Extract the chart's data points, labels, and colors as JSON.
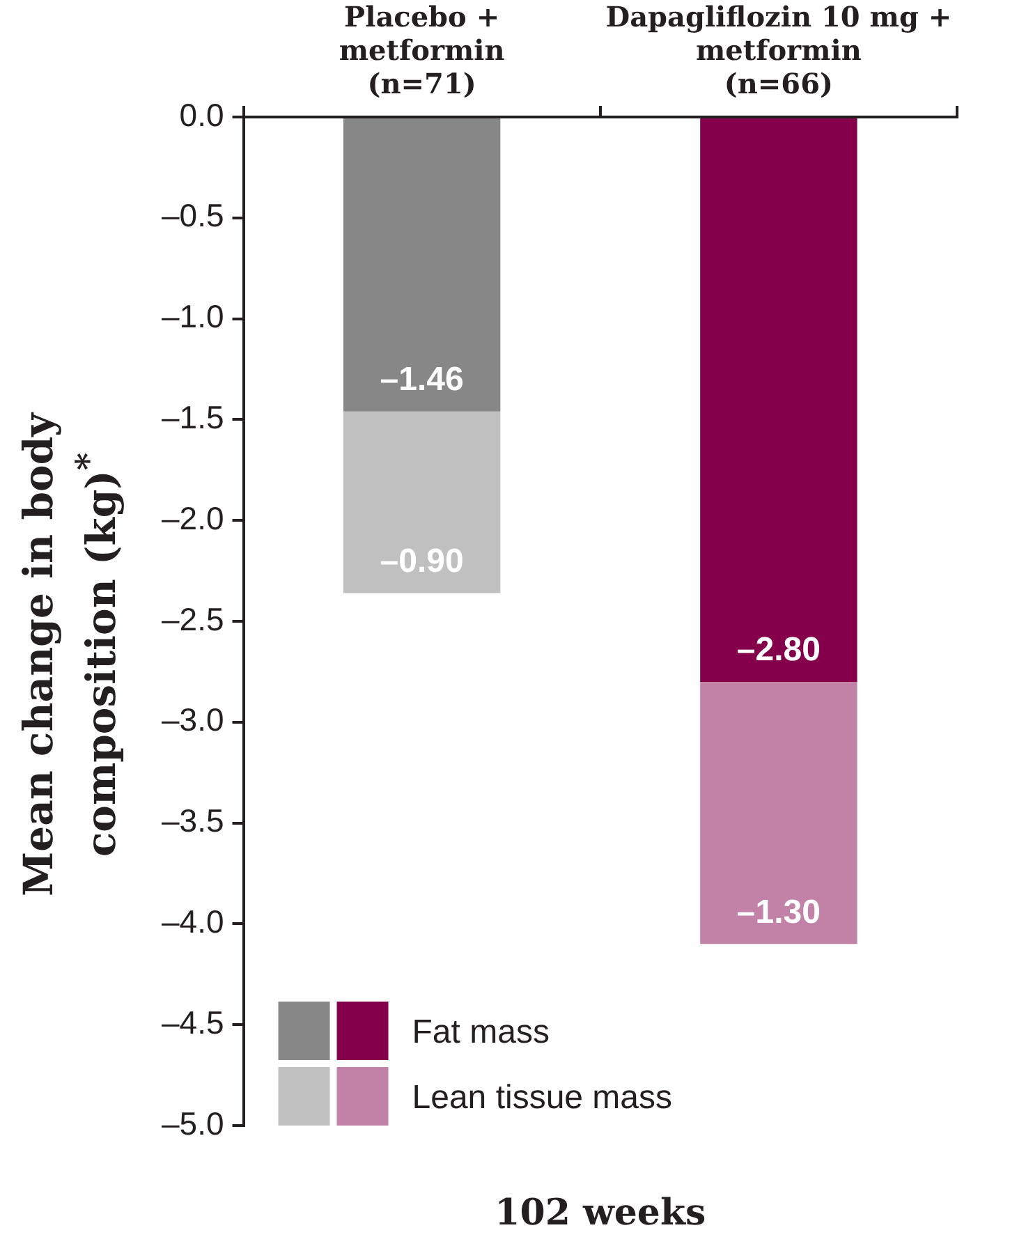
{
  "chart_data": {
    "type": "bar",
    "stacked": true,
    "categories": [
      "Placebo +\nmetformin\n(n=71)",
      "Dapagliflozin 10 mg +\nmetformin\n(n=66)"
    ],
    "series": [
      {
        "name": "Fat mass",
        "colors": [
          "#878787",
          "#85004b"
        ],
        "values": [
          -1.46,
          -2.8
        ],
        "value_labels": [
          "–1.46",
          "–2.80"
        ]
      },
      {
        "name": "Lean tissue mass",
        "colors": [
          "#c0c0c0",
          "#c282a8"
        ],
        "values": [
          -0.9,
          -1.3
        ],
        "value_labels": [
          "–0.90",
          "–1.30"
        ]
      }
    ],
    "ylim": [
      -5,
      0
    ],
    "yticks": [
      {
        "value": 0,
        "label": "0.0"
      },
      {
        "value": -0.5,
        "label": "–0.5"
      },
      {
        "value": -1,
        "label": "–1.0"
      },
      {
        "value": -1.5,
        "label": "–1.5"
      },
      {
        "value": -2,
        "label": "–2.0"
      },
      {
        "value": -2.5,
        "label": "–2.5"
      },
      {
        "value": -3,
        "label": "–3.0"
      },
      {
        "value": -3.5,
        "label": "–3.5"
      },
      {
        "value": -4,
        "label": "–4.0"
      },
      {
        "value": -4.5,
        "label": "–4.5"
      },
      {
        "value": -5,
        "label": "–5.0"
      }
    ],
    "ylabel": "Mean change in body composition (kg)$^{*}$",
    "xlabel": "102 weeks",
    "grid": false,
    "legend": "bottom left"
  }
}
